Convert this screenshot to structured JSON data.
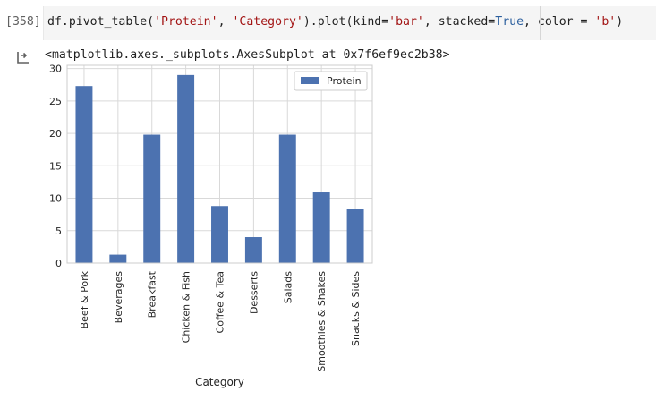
{
  "cell": {
    "prompt": "[358]",
    "code": {
      "prefix": "df.pivot_table(",
      "arg1": "'Protein'",
      "sep1": ", ",
      "arg2": "'Category'",
      "mid": ").plot(kind=",
      "arg3": "'bar'",
      "mid2": ", stacked=",
      "kw": "True",
      "mid3": ", color = ",
      "arg4": "'b'",
      "suffix": ")"
    }
  },
  "output": {
    "icon": "output-arrow-icon",
    "repr": "<matplotlib.axes._subplots.AxesSubplot at 0x7f6ef9ec2b38>"
  },
  "chart_data": {
    "type": "bar",
    "categories": [
      "Beef & Pork",
      "Beverages",
      "Breakfast",
      "Chicken & Fish",
      "Coffee & Tea",
      "Desserts",
      "Salads",
      "Smoothies & Shakes",
      "Snacks & Sides"
    ],
    "series": [
      {
        "name": "Protein",
        "values": [
          27.3,
          1.3,
          19.8,
          29.0,
          8.8,
          4.0,
          19.8,
          10.9,
          8.4
        ],
        "color": "#4c72b0"
      }
    ],
    "yticks": [
      "0",
      "5",
      "10",
      "15",
      "20",
      "25",
      "30"
    ],
    "ylim": [
      0,
      30.5
    ],
    "xlabel": "Category",
    "ylabel": "",
    "grid": true,
    "legend": "top-right"
  }
}
